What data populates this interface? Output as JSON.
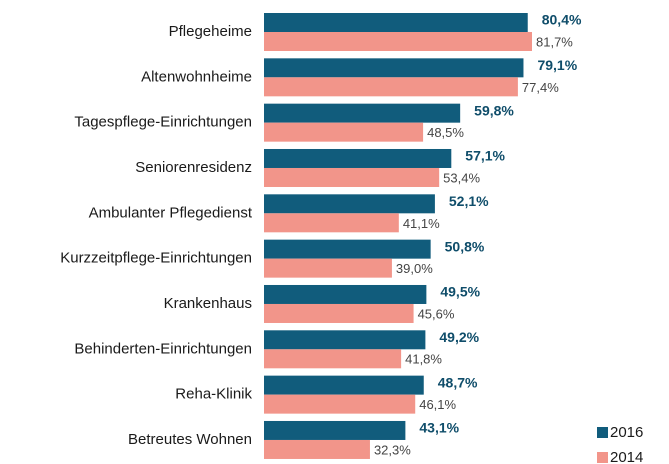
{
  "chart_data": {
    "type": "bar",
    "orientation": "horizontal",
    "categories": [
      "Pflegeheime",
      "Altenwohnheime",
      "Tagespflege-Einrichtungen",
      "Seniorenresidenz",
      "Ambulanter Pflegedienst",
      "Kurzzeitpflege-Einrichtungen",
      "Krankenhaus",
      "Behinderten-Einrichtungen",
      "Reha-Klinik",
      "Betreutes Wohnen"
    ],
    "series": [
      {
        "name": "2016",
        "color": "#115c7c",
        "values": [
          80.4,
          79.1,
          59.8,
          57.1,
          52.1,
          50.8,
          49.5,
          49.2,
          48.7,
          43.1
        ],
        "value_labels": [
          "80,4%",
          "79,1%",
          "59,8%",
          "57,1%",
          "52,1%",
          "50,8%",
          "49,5%",
          "49,2%",
          "48,7%",
          "43,1%"
        ]
      },
      {
        "name": "2014",
        "color": "#f2958a",
        "values": [
          81.7,
          77.4,
          48.5,
          53.4,
          41.1,
          39.0,
          45.6,
          41.8,
          46.1,
          32.3
        ],
        "value_labels": [
          "81,7%",
          "77,4%",
          "48,5%",
          "53,4%",
          "41,1%",
          "39,0%",
          "45,6%",
          "41,8%",
          "46,1%",
          "32,3%"
        ]
      }
    ],
    "legend": "bottom-right"
  }
}
